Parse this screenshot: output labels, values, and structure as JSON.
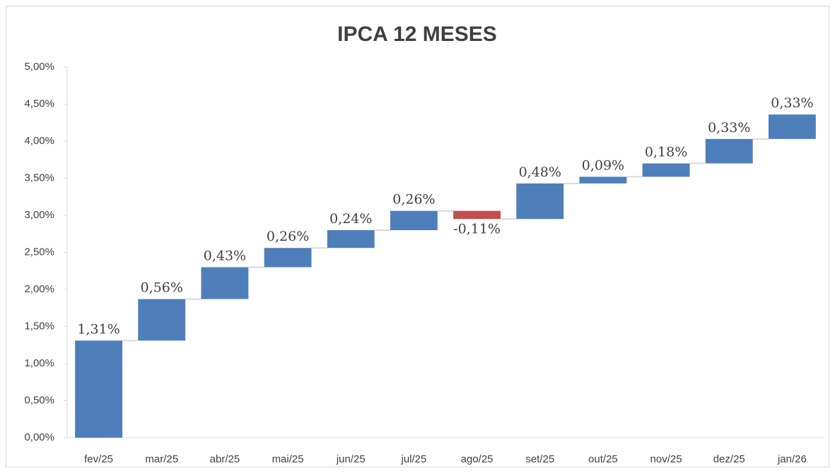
{
  "chart_data": {
    "type": "waterfall",
    "title": "IPCA 12 MESES",
    "categories": [
      "fev/25",
      "mar/25",
      "abr/25",
      "mai/25",
      "jun/25",
      "jul/25",
      "ago/25",
      "set/25",
      "out/25",
      "nov/25",
      "dez/25",
      "jan/26"
    ],
    "values": [
      1.31,
      0.56,
      0.43,
      0.26,
      0.24,
      0.26,
      -0.11,
      0.48,
      0.09,
      0.18,
      0.33,
      0.33
    ],
    "value_labels": [
      "1,31%",
      "0,56%",
      "0,43%",
      "0,26%",
      "0,24%",
      "0,26%",
      "-0,11%",
      "0,48%",
      "0,09%",
      "0,18%",
      "0,33%",
      "0,33%"
    ],
    "color": "#4e7fba",
    "negative_color": "#c0504d",
    "ylim": [
      0,
      5
    ],
    "yticks": [
      {
        "value": 0,
        "label": "0,00%"
      },
      {
        "value": 0.5,
        "label": "0,50%"
      },
      {
        "value": 1,
        "label": "1,00%"
      },
      {
        "value": 1.5,
        "label": "1,50%"
      },
      {
        "value": 2,
        "label": "2,00%"
      },
      {
        "value": 2.5,
        "label": "2,50%"
      },
      {
        "value": 3,
        "label": "3,00%"
      },
      {
        "value": 3.5,
        "label": "3,50%"
      },
      {
        "value": 4,
        "label": "4,00%"
      },
      {
        "value": 4.5,
        "label": "4,50%"
      },
      {
        "value": 5,
        "label": "5,00%"
      }
    ],
    "grid": false
  }
}
